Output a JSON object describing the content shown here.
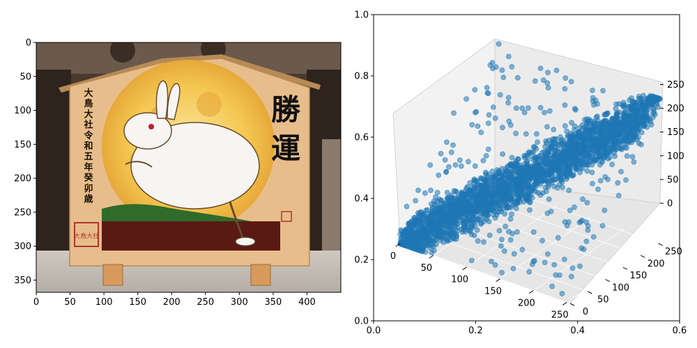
{
  "colors": {
    "scatter": "#1f77b4",
    "board_wood": "#e9c08f",
    "moon": "#f2c24a",
    "rabbit": "#f7f5f2",
    "hill": "#2f6b2a",
    "lacquer": "#5a1a14",
    "pane_grey": "#f2f2f2"
  },
  "icons": {
    "image_panel": "ema-votive-plaque-rabbit-image"
  },
  "chart_data": [
    {
      "type": "image",
      "xlim": [
        0,
        450
      ],
      "ylim": [
        368,
        0
      ],
      "xticks": [
        0,
        50,
        100,
        150,
        200,
        250,
        300,
        350,
        400
      ],
      "yticks": [
        0,
        50,
        100,
        150,
        200,
        250,
        300,
        350
      ],
      "image_text": {
        "vertical_inscription": "大鳥大社令和五年癸卯歳",
        "large_characters": "勝運",
        "seal_text": "大鳥大社"
      }
    },
    {
      "type": "scatter3d",
      "outer_axes": {
        "xlim": [
          0.0,
          0.6
        ],
        "ylim": [
          0.0,
          1.0
        ],
        "xticks": [
          "0.0",
          "0.2",
          "0.4",
          "0.6"
        ],
        "yticks": [
          "0.0",
          "0.2",
          "0.4",
          "0.6",
          "0.8",
          "1.0"
        ]
      },
      "x_axis": {
        "range": [
          0,
          255
        ],
        "ticks": [
          "0",
          "50",
          "100",
          "150",
          "200",
          "250"
        ]
      },
      "y_axis": {
        "range": [
          0,
          255
        ],
        "ticks": [
          "0",
          "50",
          "100",
          "150",
          "200",
          "250"
        ]
      },
      "z_axis": {
        "range": [
          0,
          255
        ],
        "ticks": [
          "0",
          "50",
          "100",
          "150",
          "200",
          "250"
        ]
      },
      "series": [
        {
          "description": "dense band of points (each pixel colour as x/y/z channel values)",
          "x_range": [
            0,
            255
          ],
          "y_range": [
            0,
            255
          ],
          "z_range": [
            0,
            255
          ]
        }
      ]
    }
  ]
}
